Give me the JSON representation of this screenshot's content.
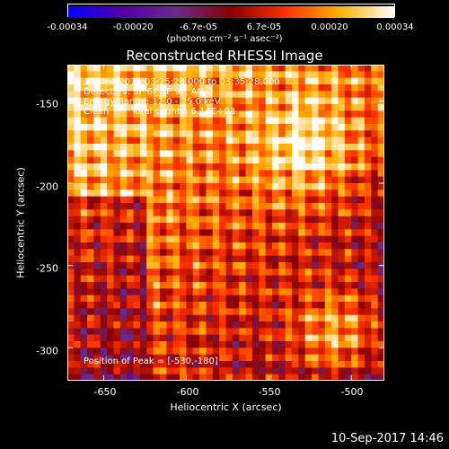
{
  "colorbar": {
    "ticks": [
      "-0.00034",
      "-0.00020",
      "-6.7e-05",
      "6.7e-05",
      "0.00020",
      "0.00034"
    ],
    "label": "(photons cm⁻² s⁻¹ asec⁻²)",
    "range": [
      -0.00034,
      0.00034
    ],
    "colors": [
      "#0000ff",
      "#5500aa",
      "#6a2a8a",
      "#8a0000",
      "#ff3000",
      "#ffb000",
      "#ffffff"
    ]
  },
  "chart_data": {
    "type": "heatmap",
    "title": "Reconstructed RHESSI Image",
    "xlabel": "Heliocentric X (arcsec)",
    "ylabel": "Heliocentric Y (arcsec)",
    "xlim": [
      -672,
      -480
    ],
    "ylim": [
      -320,
      -128
    ],
    "xticks": [
      -650,
      -600,
      -550,
      -500
    ],
    "yticks": [
      -150,
      -200,
      -250,
      -300
    ],
    "peak": [
      -530,
      -180
    ],
    "annotations": {
      "time_range": "17-Dec-2014 03:25:28.000 to 03:35:28.000",
      "detectors": "Detectors: 3F 6F 7F 9F, Att 0",
      "energy": "Energy Range: 12.0 - 25.0 keV",
      "method": "Clean",
      "counts": "Total counts: 6.14E+03",
      "peak_label": "Position of Peak = [-530,-180]"
    }
  },
  "timestamp": "10-Sep-2017 14:46"
}
